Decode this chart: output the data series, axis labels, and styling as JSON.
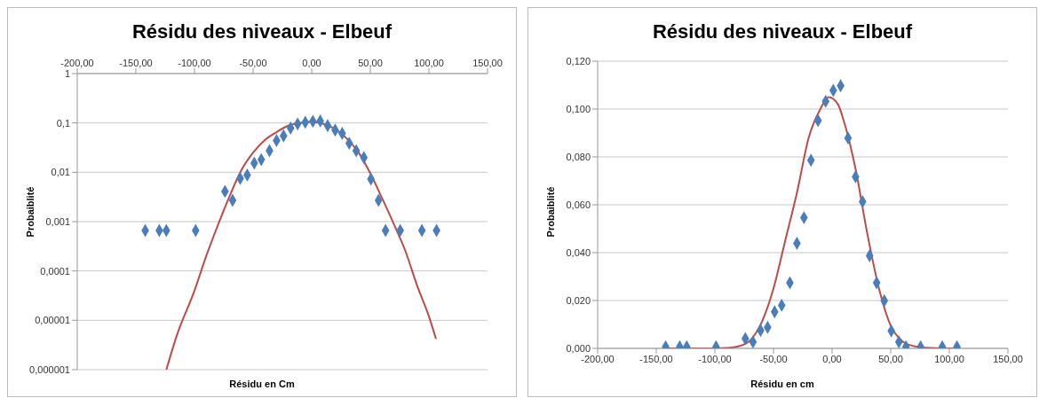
{
  "chart_data": [
    {
      "type": "scatter",
      "title": "Résidu des niveaux - Elbeuf",
      "xlabel": "Résidu en Cm",
      "ylabel": "Probaiblité",
      "log": "y",
      "grid": "y",
      "legend": false,
      "marker": "diamond",
      "xlim": [
        -200,
        150
      ],
      "xticks": [
        {
          "value": -200,
          "label": "-200,00"
        },
        {
          "value": -150,
          "label": "-150,00"
        },
        {
          "value": -100,
          "label": "-100,00"
        },
        {
          "value": -50,
          "label": "-50,00"
        },
        {
          "value": 0,
          "label": "0,00"
        },
        {
          "value": 50,
          "label": "50,00"
        },
        {
          "value": 100,
          "label": "100,00"
        },
        {
          "value": 150,
          "label": "150,00"
        }
      ],
      "ylim": [
        1e-06,
        1
      ],
      "yticks": [
        {
          "value": 1,
          "label": "1"
        },
        {
          "value": 0.1,
          "label": "0,1"
        },
        {
          "value": 0.01,
          "label": "0,01"
        },
        {
          "value": 0.001,
          "label": "0,001"
        },
        {
          "value": 0.0001,
          "label": "0,0001"
        },
        {
          "value": 1e-05,
          "label": "0,00001"
        },
        {
          "value": 1e-06,
          "label": "0,000001"
        }
      ],
      "series": [
        {
          "color": "#4a7ebb",
          "x": [
            -142,
            -130,
            -124,
            -99,
            -74,
            -67.5,
            -61,
            -55,
            -49,
            -43,
            -36,
            -30,
            -24,
            -18,
            -12,
            -5.5,
            1,
            7.3,
            13.6,
            20,
            26,
            32,
            38,
            44.5,
            50.5,
            57,
            63,
            75.5,
            94,
            106.5
          ],
          "values": [
            0.00066,
            0.00066,
            0.00066,
            0.00066,
            0.0041,
            0.0027,
            0.0075,
            0.0088,
            0.0153,
            0.018,
            0.0274,
            0.0439,
            0.0546,
            0.0786,
            0.0952,
            0.1032,
            0.1078,
            0.1097,
            0.0879,
            0.0717,
            0.0613,
            0.0387,
            0.0274,
            0.0199,
            0.0073,
            0.0027,
            0.00066,
            0.00066,
            0.00066,
            0.00066
          ]
        },
        {
          "type": "line",
          "color": "#be4b48",
          "marker": "none",
          "x": [
            -124,
            -115,
            -100,
            -90,
            -80,
            -70,
            -60,
            -50,
            -40,
            -30,
            -20,
            -10,
            -3,
            5,
            10,
            20,
            30,
            40,
            50,
            60,
            70,
            80,
            90,
            100,
            106
          ],
          "values": [
            1e-06,
            5e-06,
            4e-05,
            0.0002,
            0.00085,
            0.0033,
            0.011,
            0.025,
            0.045,
            0.065,
            0.088,
            0.1,
            0.105,
            0.102,
            0.095,
            0.075,
            0.048,
            0.025,
            0.0095,
            0.003,
            0.0009,
            0.00025,
            5e-05,
            1.2e-05,
            4.2e-06
          ]
        }
      ]
    },
    {
      "type": "scatter",
      "title": "Résidu des niveaux - Elbeuf",
      "xlabel": "Résidu en cm",
      "ylabel": "Probaiblité",
      "grid": "y",
      "legend": false,
      "marker": "diamond",
      "xlim": [
        -200,
        150
      ],
      "xticks": [
        {
          "value": -200,
          "label": "-200,00"
        },
        {
          "value": -150,
          "label": "-150,00"
        },
        {
          "value": -100,
          "label": "-100,00"
        },
        {
          "value": -50,
          "label": "-50,00"
        },
        {
          "value": 0,
          "label": "0,00"
        },
        {
          "value": 50,
          "label": "50,00"
        },
        {
          "value": 100,
          "label": "100,00"
        },
        {
          "value": 150,
          "label": "150,00"
        }
      ],
      "ylim": [
        0,
        0.12
      ],
      "yticks": [
        {
          "value": 0,
          "label": "0,000"
        },
        {
          "value": 0.02,
          "label": "0,020"
        },
        {
          "value": 0.04,
          "label": "0,040"
        },
        {
          "value": 0.06,
          "label": "0,060"
        },
        {
          "value": 0.08,
          "label": "0,080"
        },
        {
          "value": 0.1,
          "label": "0,100"
        },
        {
          "value": 0.12,
          "label": "0,120"
        }
      ],
      "series": [
        {
          "color": "#4a7ebb",
          "x": [
            -142,
            -130,
            -124,
            -99,
            -74,
            -67.5,
            -61,
            -55,
            -49,
            -43,
            -36,
            -30,
            -24,
            -18,
            -12,
            -5.5,
            1,
            7.3,
            13.6,
            20,
            26,
            32,
            38,
            44.5,
            50.5,
            57,
            63,
            75.5,
            94,
            106.5
          ],
          "values": [
            0.00066,
            0.00066,
            0.00066,
            0.00066,
            0.0041,
            0.0027,
            0.0075,
            0.0088,
            0.0153,
            0.018,
            0.0274,
            0.0439,
            0.0546,
            0.0786,
            0.0952,
            0.1032,
            0.1078,
            0.1097,
            0.0879,
            0.0717,
            0.0613,
            0.0387,
            0.0274,
            0.0199,
            0.0073,
            0.0027,
            0.00066,
            0.00066,
            0.00066,
            0.00066
          ]
        },
        {
          "type": "line",
          "color": "#be4b48",
          "marker": "none",
          "x": [
            -142,
            -124,
            -100,
            -90,
            -80,
            -70,
            -60,
            -50,
            -40,
            -30,
            -20,
            -10,
            -3,
            5,
            10,
            20,
            30,
            40,
            50,
            60,
            70,
            80,
            90,
            100,
            106
          ],
          "values": [
            0,
            1e-06,
            4e-05,
            0.0002,
            0.00085,
            0.0033,
            0.011,
            0.025,
            0.045,
            0.065,
            0.088,
            0.1,
            0.105,
            0.102,
            0.095,
            0.075,
            0.048,
            0.025,
            0.0095,
            0.003,
            0.0009,
            0.00025,
            5e-05,
            1.2e-05,
            4.2e-06
          ]
        }
      ]
    }
  ]
}
